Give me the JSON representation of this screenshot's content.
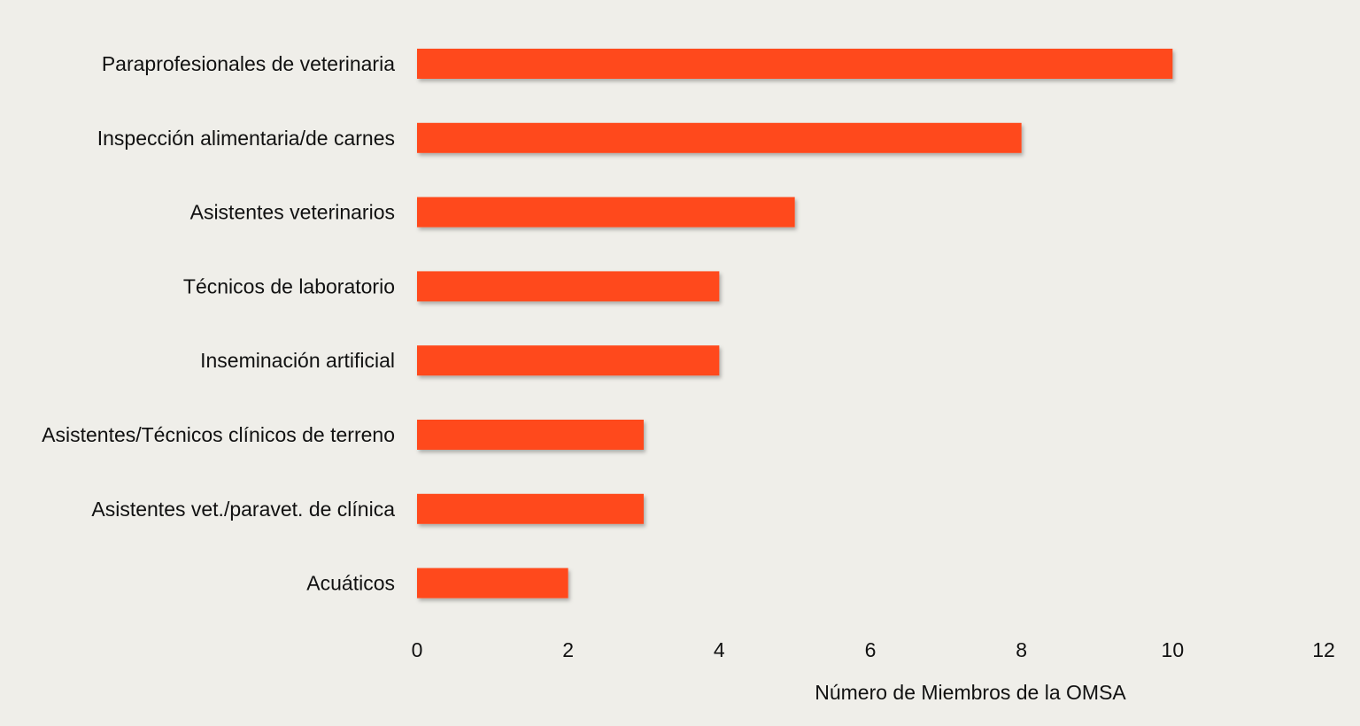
{
  "chart_data": {
    "type": "bar",
    "orientation": "horizontal",
    "categories": [
      "Paraprofesionales de veterinaria",
      "Inspección alimentaria/de carnes",
      "Asistentes veterinarios",
      "Técnicos de laboratorio",
      "Inseminación artificial",
      "Asistentes/Técnicos clínicos de terreno",
      "Asistentes vet./paravet. de clínica",
      "Acuáticos"
    ],
    "values": [
      10,
      8,
      5,
      4,
      4,
      3,
      3,
      2
    ],
    "xlabel": "Número de Miembros de la OMSA",
    "xlim": [
      0,
      12
    ],
    "xticks": [
      0,
      2,
      4,
      6,
      8,
      10,
      12
    ],
    "grid": false,
    "bar_color": "#ff4a1c",
    "background": "#efeee9"
  }
}
